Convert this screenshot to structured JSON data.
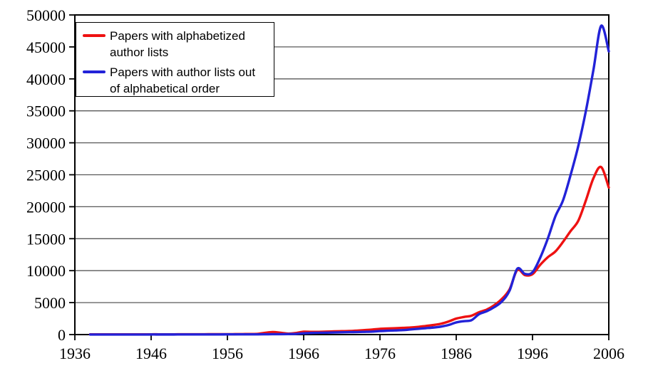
{
  "chart_data": {
    "type": "line",
    "title": "",
    "xlabel": "",
    "ylabel": "",
    "xlim": [
      1936,
      2006
    ],
    "ylim": [
      0,
      50000
    ],
    "x_ticks": [
      1936,
      1946,
      1956,
      1966,
      1976,
      1986,
      1996,
      2006
    ],
    "y_ticks": [
      0,
      5000,
      10000,
      15000,
      20000,
      25000,
      30000,
      35000,
      40000,
      45000,
      50000
    ],
    "grid": "horizontal",
    "legend_position": "top-left",
    "x": [
      1938,
      1939,
      1940,
      1941,
      1942,
      1943,
      1944,
      1945,
      1946,
      1947,
      1948,
      1949,
      1950,
      1951,
      1952,
      1953,
      1954,
      1955,
      1956,
      1957,
      1958,
      1959,
      1960,
      1961,
      1962,
      1963,
      1964,
      1965,
      1966,
      1967,
      1968,
      1969,
      1970,
      1971,
      1972,
      1973,
      1974,
      1975,
      1976,
      1977,
      1978,
      1979,
      1980,
      1981,
      1982,
      1983,
      1984,
      1985,
      1986,
      1987,
      1988,
      1989,
      1990,
      1991,
      1992,
      1993,
      1994,
      1995,
      1996,
      1997,
      1998,
      1999,
      2000,
      2001,
      2002,
      2003,
      2004,
      2005,
      2006
    ],
    "series": [
      {
        "name": "Papers with alphabetized author lists",
        "legend_lines": [
          "Papers with alphabetized",
          "author lists"
        ],
        "color": "#ee1111",
        "values": [
          30,
          30,
          30,
          30,
          30,
          30,
          30,
          30,
          40,
          40,
          40,
          40,
          50,
          50,
          50,
          50,
          60,
          60,
          60,
          70,
          80,
          90,
          120,
          280,
          400,
          280,
          150,
          250,
          450,
          420,
          430,
          460,
          500,
          530,
          560,
          620,
          700,
          780,
          900,
          950,
          1000,
          1050,
          1100,
          1200,
          1350,
          1500,
          1700,
          2050,
          2500,
          2750,
          2950,
          3500,
          3900,
          4600,
          5600,
          7100,
          10100,
          9300,
          9450,
          10900,
          12100,
          13000,
          14500,
          16200,
          17800,
          21000,
          24500,
          26200,
          23000
        ]
      },
      {
        "name": "Papers with author lists out of alphabetical order",
        "legend_lines": [
          "Papers with author lists out",
          "of alphabetical order"
        ],
        "color": "#2222d8",
        "values": [
          10,
          10,
          10,
          10,
          10,
          10,
          10,
          10,
          15,
          15,
          15,
          15,
          20,
          20,
          20,
          20,
          25,
          25,
          30,
          30,
          35,
          35,
          40,
          50,
          60,
          60,
          80,
          110,
          200,
          250,
          280,
          300,
          330,
          350,
          380,
          400,
          430,
          470,
          550,
          600,
          650,
          700,
          800,
          900,
          1000,
          1100,
          1250,
          1500,
          1900,
          2100,
          2250,
          3200,
          3650,
          4300,
          5200,
          6900,
          10300,
          9500,
          9750,
          12000,
          15000,
          18500,
          21000,
          25000,
          29500,
          35000,
          41500,
          48300,
          44300
        ]
      }
    ]
  }
}
